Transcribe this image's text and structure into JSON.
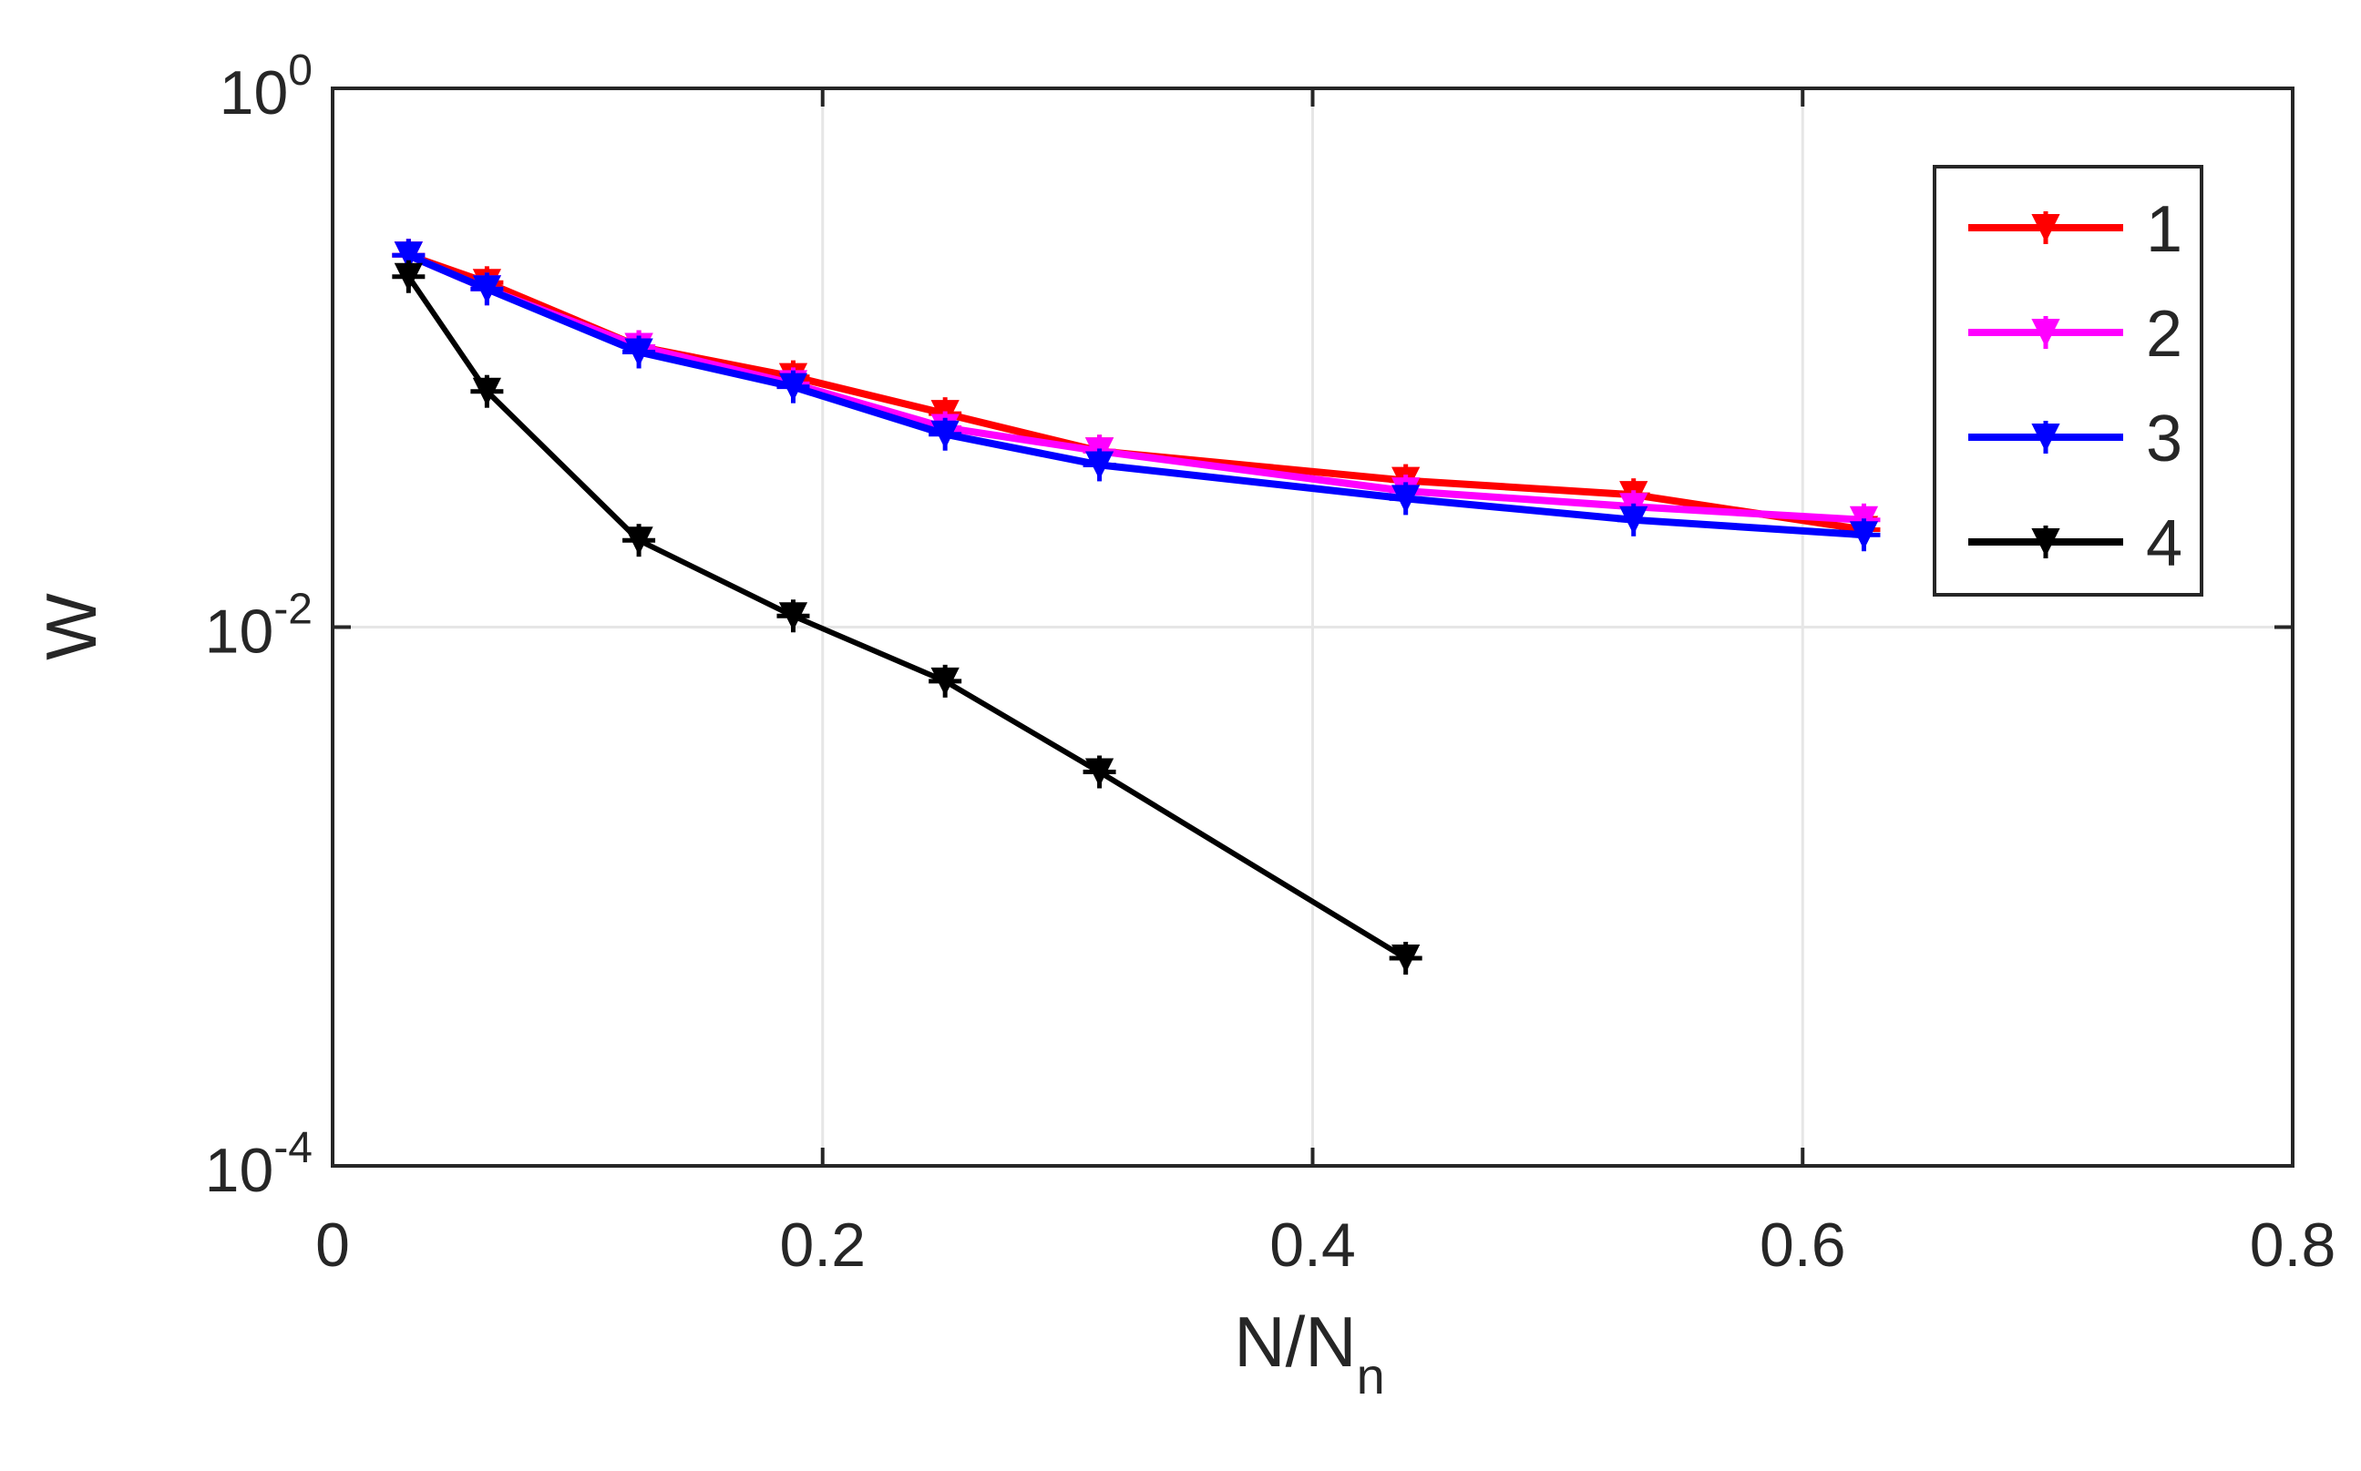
{
  "chart_data": {
    "type": "line",
    "title": "",
    "xlabel": "N/N",
    "xlabel_subscript": "n",
    "ylabel": "W",
    "xlim": [
      0,
      0.8
    ],
    "ylim": [
      0.0001,
      1
    ],
    "y_scale": "log",
    "grid": true,
    "legend_position": "top-right",
    "x_ticks": [
      {
        "value": 0,
        "label": "0"
      },
      {
        "value": 0.2,
        "label": "0.2"
      },
      {
        "value": 0.4,
        "label": "0.4"
      },
      {
        "value": 0.6,
        "label": "0.6"
      },
      {
        "value": 0.8,
        "label": "0.8"
      }
    ],
    "y_ticks": [
      {
        "value": 1,
        "base": "10",
        "exp": "0"
      },
      {
        "value": 0.01,
        "base": "10",
        "exp": "-2"
      },
      {
        "value": 0.0001,
        "base": "10",
        "exp": "-4"
      }
    ],
    "series": [
      {
        "name": "1",
        "color": "#ff0000",
        "x": [
          0.031,
          0.063,
          0.125,
          0.188,
          0.25,
          0.313,
          0.438,
          0.531,
          0.625
        ],
        "y": [
          0.24,
          0.19,
          0.11,
          0.085,
          0.062,
          0.045,
          0.035,
          0.031,
          0.023
        ]
      },
      {
        "name": "2",
        "color": "#ff00ff",
        "x": [
          0.031,
          0.063,
          0.125,
          0.188,
          0.25,
          0.313,
          0.438,
          0.531,
          0.625
        ],
        "y": [
          0.24,
          0.18,
          0.11,
          0.08,
          0.055,
          0.045,
          0.032,
          0.028,
          0.025
        ]
      },
      {
        "name": "3",
        "color": "#0000ff",
        "x": [
          0.031,
          0.063,
          0.125,
          0.188,
          0.25,
          0.313,
          0.438,
          0.531,
          0.625
        ],
        "y": [
          0.24,
          0.18,
          0.105,
          0.078,
          0.052,
          0.04,
          0.03,
          0.025,
          0.022
        ]
      },
      {
        "name": "4",
        "color": "#000000",
        "x": [
          0.031,
          0.063,
          0.125,
          0.188,
          0.25,
          0.313,
          0.438
        ],
        "y": [
          0.2,
          0.075,
          0.021,
          0.011,
          0.0063,
          0.0029,
          0.00059
        ]
      }
    ]
  }
}
